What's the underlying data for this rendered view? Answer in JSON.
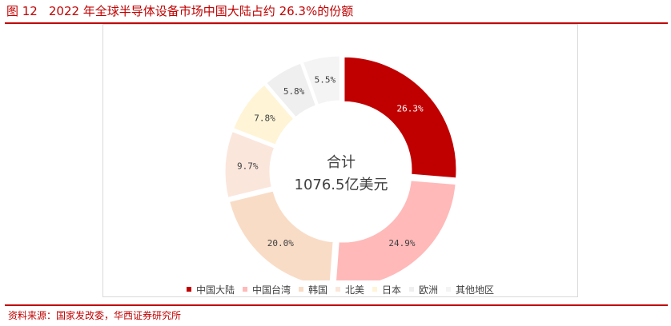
{
  "figure": {
    "number": "图 12",
    "title": "2022 年全球半导体设备市场中国大陆占约 26.3%的份额",
    "source": "资料来源：国家发改委，华西证券研究所"
  },
  "colors": {
    "accent": "#c00000",
    "border": "#d9d9d9"
  },
  "chart_data": {
    "type": "pie",
    "variant": "donut",
    "center_label": [
      "合计",
      "1076.5亿美元"
    ],
    "legend_position": "bottom",
    "slices": [
      {
        "name": "中国大陆",
        "value": 26.3,
        "label": "26.3%",
        "color": "#c00000"
      },
      {
        "name": "中国台湾",
        "value": 24.9,
        "label": "24.9%",
        "color": "#ffb9b9"
      },
      {
        "name": "韩国",
        "value": 20.0,
        "label": "20.0%",
        "color": "#f9dcc6"
      },
      {
        "name": "北美",
        "value": 9.7,
        "label": "9.7%",
        "color": "#fbe6dc"
      },
      {
        "name": "日本",
        "value": 7.8,
        "label": "7.8%",
        "color": "#fff4d6"
      },
      {
        "name": "欧洲",
        "value": 5.8,
        "label": "5.8%",
        "color": "#efefef"
      },
      {
        "name": "其他地区",
        "value": 5.5,
        "label": "5.5%",
        "color": "#f4f4f4"
      }
    ]
  }
}
